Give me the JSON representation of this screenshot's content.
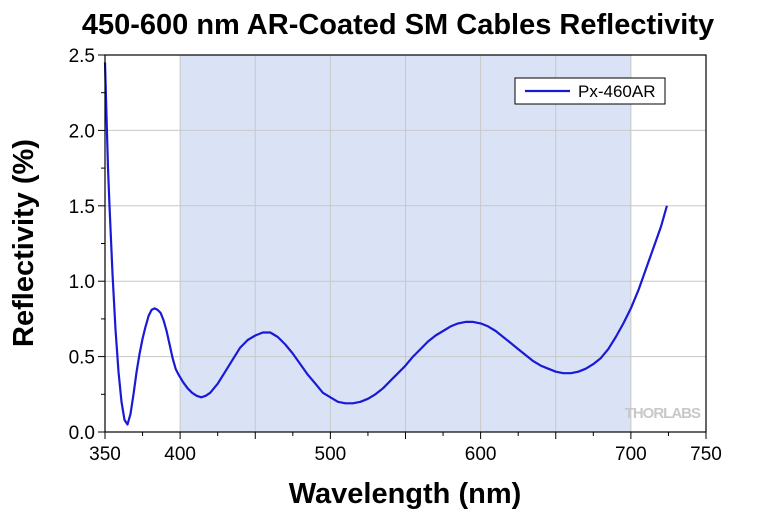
{
  "chart_data": {
    "type": "line",
    "title": "450-600 nm AR-Coated SM Cables Reflectivity",
    "xlabel": "Wavelength (nm)",
    "ylabel": "Reflectivity (%)",
    "xlim": [
      350,
      750
    ],
    "ylim": [
      0,
      2.5
    ],
    "x_ticks": [
      350,
      400,
      500,
      600,
      700,
      750
    ],
    "y_ticks": [
      "0.0",
      "0.5",
      "1.0",
      "1.5",
      "2.0",
      "2.5"
    ],
    "grid": true,
    "legend_position": "top-right",
    "shaded_region": [
      400,
      700
    ],
    "watermark": "THORLABS",
    "colors": {
      "line": "#1a1ad6",
      "shade": "#dae3f5",
      "grid": "#c8c8c8"
    },
    "series": [
      {
        "name": "Px-460AR",
        "x": [
          350,
          351,
          352,
          353,
          355,
          357,
          359,
          361,
          363,
          365,
          367,
          369,
          371,
          373,
          375,
          377,
          379,
          381,
          383,
          385,
          387,
          389,
          391,
          393,
          395,
          397,
          399,
          402,
          405,
          408,
          411,
          414,
          417,
          420,
          425,
          430,
          435,
          440,
          445,
          450,
          455,
          460,
          465,
          470,
          475,
          480,
          485,
          490,
          495,
          500,
          505,
          510,
          515,
          520,
          525,
          530,
          535,
          540,
          545,
          550,
          555,
          560,
          565,
          570,
          575,
          580,
          585,
          590,
          595,
          600,
          605,
          610,
          615,
          620,
          625,
          630,
          635,
          640,
          645,
          650,
          655,
          660,
          665,
          670,
          675,
          680,
          685,
          690,
          695,
          700,
          705,
          710,
          715,
          720,
          724
        ],
        "y": [
          2.45,
          2.1,
          1.75,
          1.5,
          1.05,
          0.68,
          0.4,
          0.2,
          0.08,
          0.05,
          0.12,
          0.25,
          0.4,
          0.52,
          0.62,
          0.7,
          0.77,
          0.81,
          0.82,
          0.81,
          0.79,
          0.74,
          0.67,
          0.58,
          0.49,
          0.42,
          0.38,
          0.33,
          0.29,
          0.26,
          0.24,
          0.23,
          0.24,
          0.26,
          0.32,
          0.4,
          0.48,
          0.56,
          0.61,
          0.64,
          0.66,
          0.66,
          0.63,
          0.58,
          0.52,
          0.45,
          0.38,
          0.32,
          0.26,
          0.23,
          0.2,
          0.19,
          0.19,
          0.2,
          0.22,
          0.25,
          0.29,
          0.34,
          0.39,
          0.44,
          0.5,
          0.55,
          0.6,
          0.64,
          0.67,
          0.7,
          0.72,
          0.73,
          0.73,
          0.72,
          0.7,
          0.67,
          0.63,
          0.59,
          0.55,
          0.51,
          0.47,
          0.44,
          0.42,
          0.4,
          0.39,
          0.39,
          0.4,
          0.42,
          0.45,
          0.49,
          0.55,
          0.63,
          0.72,
          0.82,
          0.94,
          1.08,
          1.22,
          1.36,
          1.5
        ]
      }
    ]
  }
}
